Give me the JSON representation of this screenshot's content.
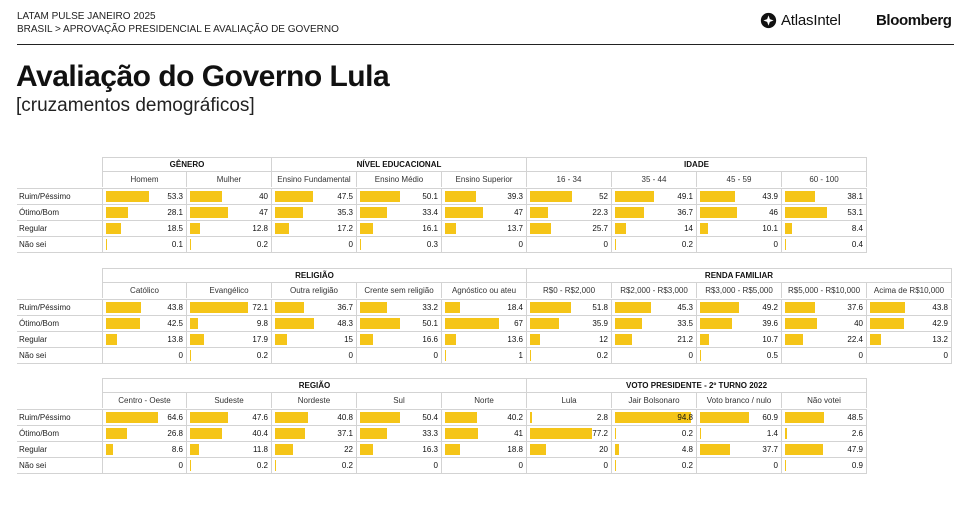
{
  "header": {
    "line1": "LATAM PULSE JANEIRO 2025",
    "line2": "BRASIL > APROVAÇÃO PRESIDENCIAL E AVALIAÇÃO DE GOVERNO",
    "brand1": "AtlasIntel",
    "brand2": "Bloomberg",
    "brand1_icon": "atlasintel-logo-icon",
    "title": "Avaliação do Governo Lula",
    "subtitle": "[cruzamentos demográficos]"
  },
  "colors": {
    "bar": "#f5c518",
    "grid": "#d3d3d3"
  },
  "chart_data": {
    "type": "table",
    "rows": [
      "Ruim/Péssimo",
      "Ótimo/Bom",
      "Regular",
      "Não sei"
    ],
    "panels": [
      {
        "groups": [
          {
            "name": "GÊNERO",
            "columns": [
              {
                "label": "Homem",
                "values": [
                  53.3,
                  28.1,
                  18.5,
                  0.1
                ]
              },
              {
                "label": "Mulher",
                "values": [
                  40,
                  47,
                  12.8,
                  0.2
                ]
              }
            ]
          },
          {
            "name": "NÍVEL EDUCACIONAL",
            "columns": [
              {
                "label": "Ensino Fundamental",
                "values": [
                  47.5,
                  35.3,
                  17.2,
                  0
                ]
              },
              {
                "label": "Ensino Médio",
                "values": [
                  50.1,
                  33.4,
                  16.1,
                  0.3
                ]
              },
              {
                "label": "Ensino Superior",
                "values": [
                  39.3,
                  47,
                  13.7,
                  0
                ]
              }
            ]
          },
          {
            "name": "IDADE",
            "columns": [
              {
                "label": "16 - 34",
                "values": [
                  52,
                  22.3,
                  25.7,
                  0
                ]
              },
              {
                "label": "35 - 44",
                "values": [
                  49.1,
                  36.7,
                  14,
                  0.2
                ]
              },
              {
                "label": "45 - 59",
                "values": [
                  43.9,
                  46,
                  10.1,
                  0
                ]
              },
              {
                "label": "60 - 100",
                "values": [
                  38.1,
                  53.1,
                  8.4,
                  0.4
                ]
              }
            ]
          }
        ]
      },
      {
        "groups": [
          {
            "name": "RELIGIÃO",
            "columns": [
              {
                "label": "Católico",
                "values": [
                  43.8,
                  42.5,
                  13.8,
                  0
                ]
              },
              {
                "label": "Evangélico",
                "values": [
                  72.1,
                  9.8,
                  17.9,
                  0.2
                ]
              },
              {
                "label": "Outra religião",
                "values": [
                  36.7,
                  48.3,
                  15,
                  0
                ]
              },
              {
                "label": "Crente sem religião",
                "values": [
                  33.2,
                  50.1,
                  16.6,
                  0
                ]
              },
              {
                "label": "Agnóstico ou ateu",
                "values": [
                  18.4,
                  67,
                  13.6,
                  1
                ]
              }
            ]
          },
          {
            "name": "RENDA FAMILIAR",
            "columns": [
              {
                "label": "R$0 - R$2,000",
                "values": [
                  51.8,
                  35.9,
                  12,
                  0.2
                ]
              },
              {
                "label": "R$2,000 - R$3,000",
                "values": [
                  45.3,
                  33.5,
                  21.2,
                  0
                ]
              },
              {
                "label": "R$3,000 - R$5,000",
                "values": [
                  49.2,
                  39.6,
                  10.7,
                  0.5
                ]
              },
              {
                "label": "R$5,000 - R$10,000",
                "values": [
                  37.6,
                  40,
                  22.4,
                  0
                ]
              },
              {
                "label": "Acima de R$10,000",
                "values": [
                  43.8,
                  42.9,
                  13.2,
                  0
                ]
              }
            ]
          }
        ]
      },
      {
        "groups": [
          {
            "name": "REGIÃO",
            "columns": [
              {
                "label": "Centro - Oeste",
                "values": [
                  64.6,
                  26.8,
                  8.6,
                  0
                ]
              },
              {
                "label": "Sudeste",
                "values": [
                  47.6,
                  40.4,
                  11.8,
                  0.2
                ]
              },
              {
                "label": "Nordeste",
                "values": [
                  40.8,
                  37.1,
                  22,
                  0.2
                ]
              },
              {
                "label": "Sul",
                "values": [
                  50.4,
                  33.3,
                  16.3,
                  0
                ]
              },
              {
                "label": "Norte",
                "values": [
                  40.2,
                  41,
                  18.8,
                  0
                ]
              }
            ]
          },
          {
            "name": "VOTO PRESIDENTE - 2º TURNO 2022",
            "columns": [
              {
                "label": "Lula",
                "values": [
                  2.8,
                  77.2,
                  20,
                  0
                ]
              },
              {
                "label": "Jair Bolsonaro",
                "values": [
                  94.8,
                  0.2,
                  4.8,
                  0.2
                ]
              },
              {
                "label": "Voto branco / nulo",
                "values": [
                  60.9,
                  1.4,
                  37.7,
                  0
                ]
              },
              {
                "label": "Não votei",
                "values": [
                  48.5,
                  2.6,
                  47.9,
                  0.9
                ]
              }
            ]
          }
        ]
      }
    ]
  }
}
